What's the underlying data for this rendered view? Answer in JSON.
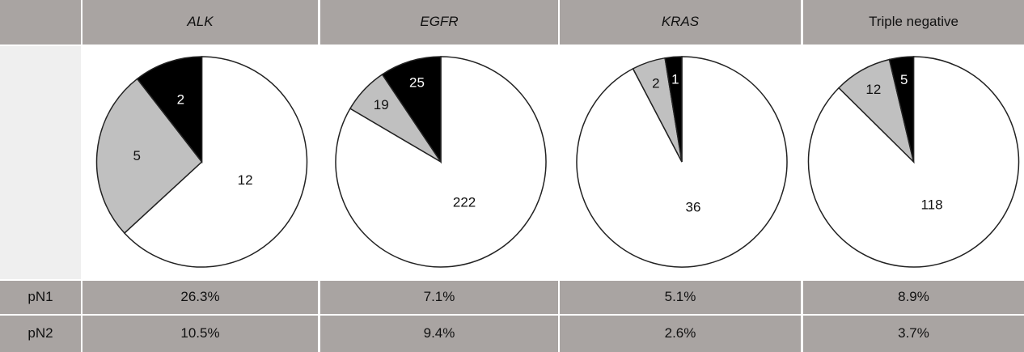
{
  "table": {
    "header": [
      "ALK",
      "EGFR",
      "KRAS",
      "Triple negative"
    ],
    "rows": [
      {
        "label": "pN1",
        "values": [
          "26.3%",
          "7.1%",
          "5.1%",
          "8.9%"
        ]
      },
      {
        "label": "pN2",
        "values": [
          "10.5%",
          "9.4%",
          "2.6%",
          "3.7%"
        ]
      }
    ]
  },
  "chart_data": [
    {
      "type": "pie",
      "values": [
        12,
        5,
        2
      ],
      "colors": [
        "#ffffff",
        "#c0c0c0",
        "#000000"
      ]
    },
    {
      "type": "pie",
      "values": [
        222,
        19,
        25
      ],
      "colors": [
        "#ffffff",
        "#c0c0c0",
        "#000000"
      ]
    },
    {
      "type": "pie",
      "values": [
        36,
        2,
        1
      ],
      "colors": [
        "#ffffff",
        "#c0c0c0",
        "#000000"
      ]
    },
    {
      "type": "pie",
      "values": [
        118,
        12,
        5
      ],
      "colors": [
        "#ffffff",
        "#c0c0c0",
        "#000000"
      ]
    }
  ]
}
